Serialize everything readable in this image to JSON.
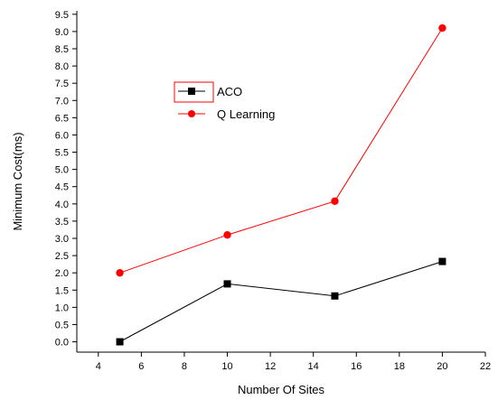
{
  "chart_data": {
    "type": "line",
    "title": "",
    "xlabel": "Number Of Sites",
    "ylabel": "Minimum Cost(ms)",
    "xlim": [
      3,
      22
    ],
    "ylim": [
      -0.3,
      9.6
    ],
    "x_ticks": [
      4,
      6,
      8,
      10,
      12,
      14,
      16,
      18,
      20,
      22
    ],
    "y_ticks": [
      0.0,
      0.5,
      1.0,
      1.5,
      2.0,
      2.5,
      3.0,
      3.5,
      4.0,
      4.5,
      5.0,
      5.5,
      6.0,
      6.5,
      7.0,
      7.5,
      8.0,
      8.5,
      9.0,
      9.5
    ],
    "x": [
      5,
      10,
      15,
      20
    ],
    "series": [
      {
        "name": "ACO",
        "values": [
          0.0,
          1.68,
          1.33,
          2.33
        ],
        "color": "#000000",
        "marker": "square"
      },
      {
        "name": "Q Learning",
        "values": [
          2.0,
          3.1,
          4.08,
          9.1
        ],
        "color": "#ff0000",
        "marker": "circle"
      }
    ],
    "legend_position": "upper-left-center",
    "grid": false
  }
}
